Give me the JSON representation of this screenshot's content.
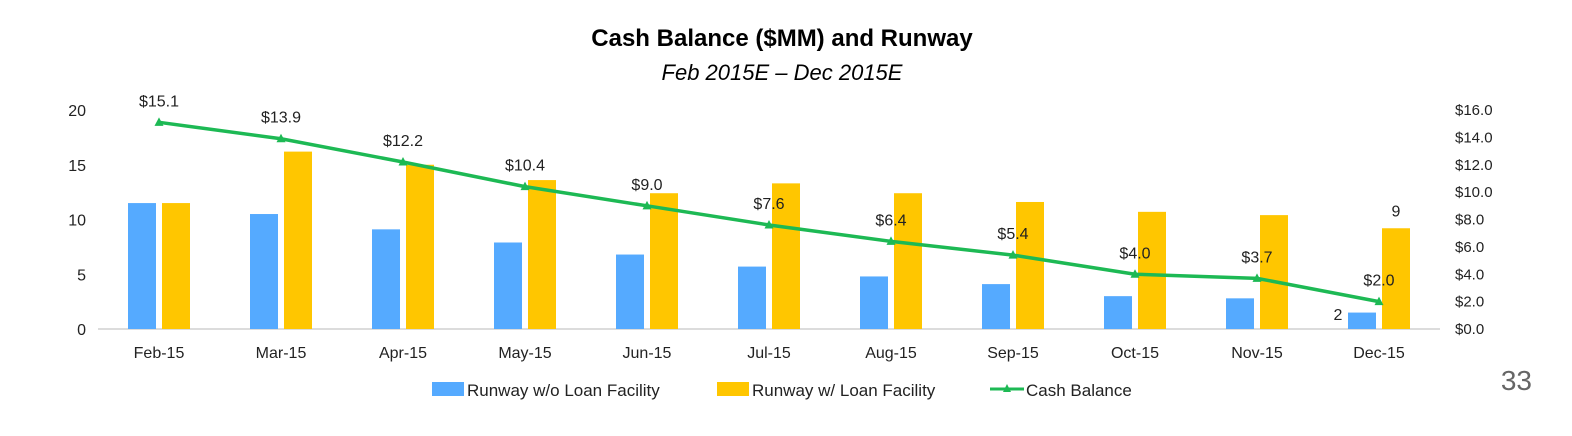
{
  "page_number": "33",
  "colors": {
    "runway_no_loan": "#55AAFF",
    "runway_loan": "#FFC600",
    "cash": "#1DB954",
    "axis": "#D0D0D0",
    "text": "#222222"
  },
  "chart_data": {
    "type": "bar",
    "title": "Cash Balance ($MM) and Runway",
    "subtitle": "Feb 2015E – Dec 2015E",
    "categories": [
      "Feb-15",
      "Mar-15",
      "Apr-15",
      "May-15",
      "Jun-15",
      "Jul-15",
      "Aug-15",
      "Sep-15",
      "Oct-15",
      "Nov-15",
      "Dec-15"
    ],
    "series": [
      {
        "name": "Runway w/o Loan Facility",
        "kind": "bar",
        "axis": "left",
        "values": [
          11.5,
          10.5,
          9.1,
          7.9,
          6.8,
          5.7,
          4.8,
          4.1,
          3.0,
          2.8,
          1.5
        ]
      },
      {
        "name": "Runway w/ Loan Facility",
        "kind": "bar",
        "axis": "left",
        "values": [
          11.5,
          16.2,
          15.0,
          13.6,
          12.4,
          13.3,
          12.4,
          11.6,
          10.7,
          10.4,
          9.2
        ]
      },
      {
        "name": "Cash Balance",
        "kind": "line",
        "axis": "right",
        "values": [
          15.1,
          13.9,
          12.2,
          10.4,
          9.0,
          7.6,
          6.4,
          5.4,
          4.0,
          3.7,
          2.0
        ]
      }
    ],
    "cash_labels": [
      "$15.1",
      "$13.9",
      "$12.2",
      "$10.4",
      "$9.0",
      "$7.6",
      "$6.4",
      "$5.4",
      "$4.0",
      "$3.7",
      "$2.0"
    ],
    "extra_labels": [
      {
        "text": "2",
        "category_index": 10,
        "series": "Runway w/o Loan Facility"
      },
      {
        "text": "9",
        "category_index": 10,
        "series": "Runway w/ Loan Facility"
      }
    ],
    "y_left": {
      "min": 0,
      "max": 20,
      "ticks": [
        0,
        5,
        10,
        15,
        20
      ],
      "tick_labels": [
        "0",
        "5",
        "10",
        "15",
        "20"
      ]
    },
    "y_right": {
      "min": 0,
      "max": 16,
      "ticks": [
        0,
        2,
        4,
        6,
        8,
        10,
        12,
        14,
        16
      ],
      "tick_labels": [
        "$0.0",
        "$2.0",
        "$4.0",
        "$6.0",
        "$8.0",
        "$10.0",
        "$12.0",
        "$14.0",
        "$16.0"
      ]
    },
    "legend": [
      "Runway w/o Loan Facility",
      "Runway w/ Loan Facility",
      "Cash Balance"
    ],
    "legend_position": "bottom",
    "grid": false
  }
}
